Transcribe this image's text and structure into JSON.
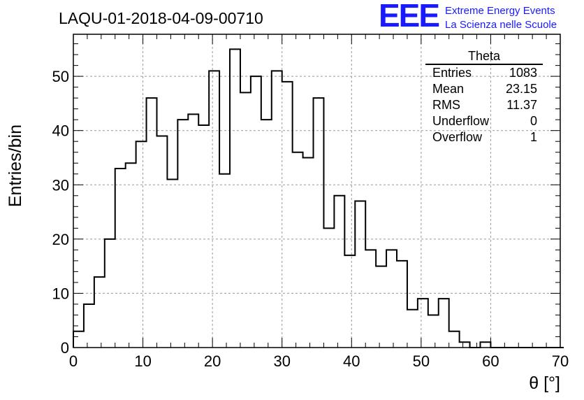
{
  "title": "LAQU-01-2018-04-09-00710",
  "logo": {
    "mark": "EEE",
    "line1": "Extreme Energy Events",
    "line2": "La Scienza nelle Scuole",
    "color": "#1a1aff"
  },
  "stats": {
    "name": "Theta",
    "rows": [
      {
        "label": "Entries",
        "value": "1083"
      },
      {
        "label": "Mean",
        "value": "23.15"
      },
      {
        "label": "RMS",
        "value": "11.37"
      },
      {
        "label": "Underflow",
        "value": "0"
      },
      {
        "label": "Overflow",
        "value": "1"
      }
    ]
  },
  "chart_data": {
    "type": "bar",
    "histogram": true,
    "bin_width": 1.5,
    "x_start": 0,
    "values": [
      3,
      8,
      13,
      20,
      33,
      34,
      38,
      46,
      39,
      31,
      42,
      43,
      41,
      51,
      32,
      55,
      47,
      50,
      42,
      51,
      49,
      36,
      35,
      46,
      22,
      28,
      17,
      27,
      18,
      15,
      18,
      16,
      7,
      9,
      6,
      9,
      3,
      1,
      0,
      1,
      0,
      0,
      0,
      0,
      0,
      0,
      0
    ],
    "xlabel": "θ [°]",
    "ylabel": "Entries/bin",
    "xlim": [
      0,
      70
    ],
    "ylim": [
      0,
      57.75
    ],
    "xticks": [
      0,
      10,
      20,
      30,
      40,
      50,
      60,
      70
    ],
    "yticks": [
      0,
      10,
      20,
      30,
      40,
      50
    ],
    "grid": true,
    "legend": "stats box top-right"
  }
}
